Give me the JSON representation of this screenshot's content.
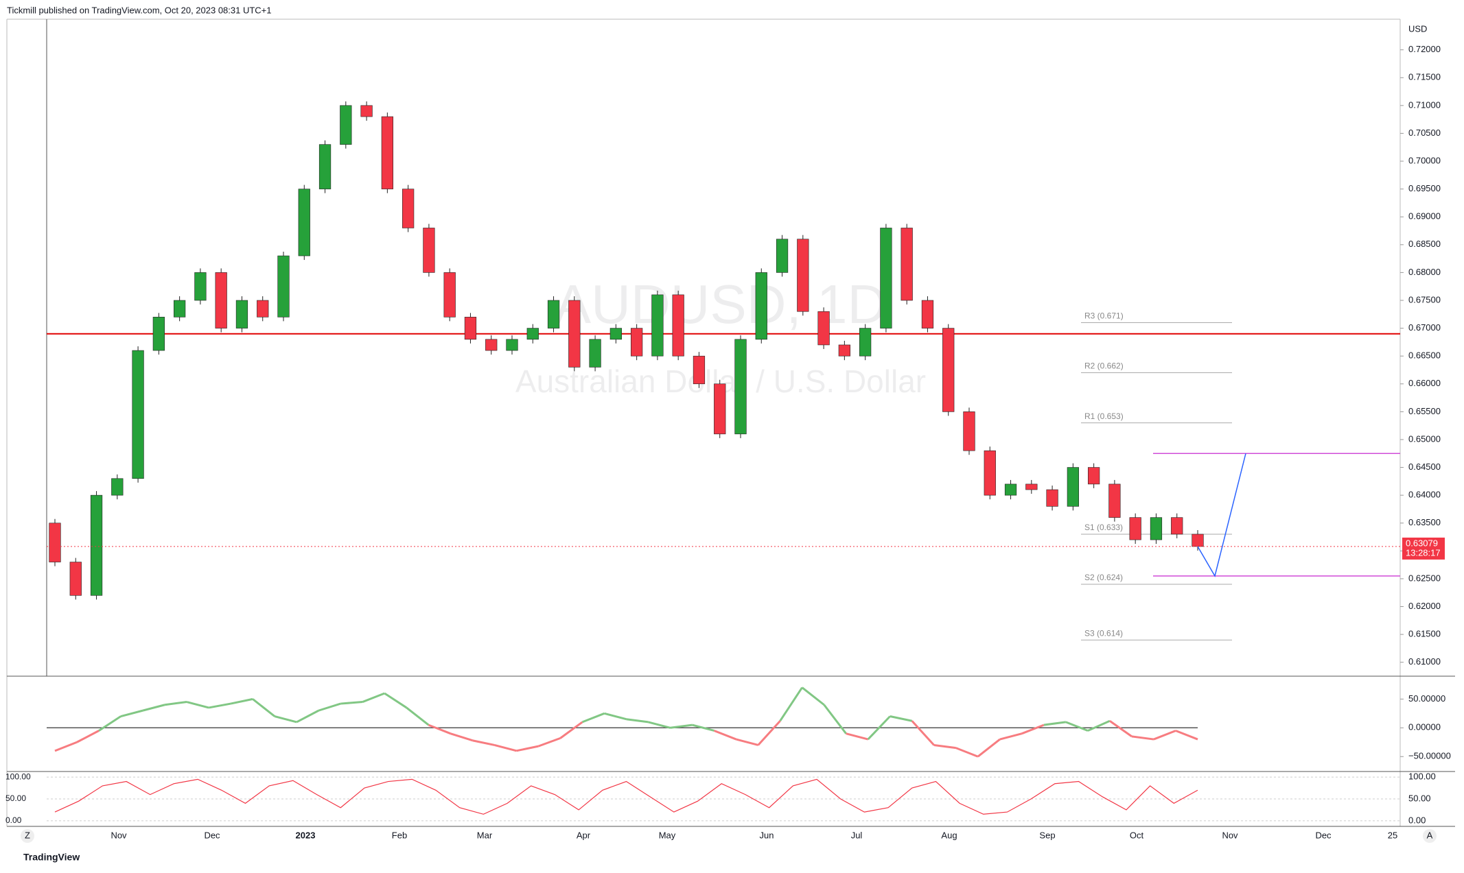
{
  "header": {
    "publisher": "Tickmill published on TradingView.com, Oct 20, 2023 08:31 UTC+1",
    "currency": "USD",
    "watermark": "AUDUSD, 1D",
    "watermark_sub": "Australian Dollar / U.S. Dollar",
    "brand": "TradingView",
    "left_button": "Z",
    "right_button": "A"
  },
  "chart_data": {
    "type": "candlestick",
    "first_open": 0.635,
    "closes": [
      0.628,
      0.622,
      0.64,
      0.643,
      0.666,
      0.672,
      0.675,
      0.68,
      0.67,
      0.675,
      0.672,
      0.683,
      0.695,
      0.703,
      0.71,
      0.708,
      0.695,
      0.688,
      0.68,
      0.672,
      0.668,
      0.666,
      0.668,
      0.67,
      0.675,
      0.663,
      0.668,
      0.67,
      0.665,
      0.676,
      0.665,
      0.66,
      0.651,
      0.668,
      0.68,
      0.686,
      0.673,
      0.667,
      0.665,
      0.67,
      0.688,
      0.675,
      0.67,
      0.655,
      0.648,
      0.64,
      0.642,
      0.641,
      0.638,
      0.645,
      0.642,
      0.636,
      0.632,
      0.636,
      0.633,
      0.63079
    ],
    "up_color": "#26a13a",
    "down_color": "#f23645",
    "ylim": [
      0.6075,
      0.7255
    ],
    "yticks": [
      {
        "value": 0.72,
        "label": "0.72000"
      },
      {
        "value": 0.715,
        "label": "0.71500"
      },
      {
        "value": 0.71,
        "label": "0.71000"
      },
      {
        "value": 0.705,
        "label": "0.70500"
      },
      {
        "value": 0.7,
        "label": "0.70000"
      },
      {
        "value": 0.695,
        "label": "0.69500"
      },
      {
        "value": 0.69,
        "label": "0.69000"
      },
      {
        "value": 0.685,
        "label": "0.68500"
      },
      {
        "value": 0.68,
        "label": "0.68000"
      },
      {
        "value": 0.675,
        "label": "0.67500"
      },
      {
        "value": 0.67,
        "label": "0.67000"
      },
      {
        "value": 0.665,
        "label": "0.66500"
      },
      {
        "value": 0.66,
        "label": "0.66000"
      },
      {
        "value": 0.655,
        "label": "0.65500"
      },
      {
        "value": 0.65,
        "label": "0.65000"
      },
      {
        "value": 0.645,
        "label": "0.64500"
      },
      {
        "value": 0.64,
        "label": "0.64000"
      },
      {
        "value": 0.635,
        "label": "0.63500"
      },
      {
        "value": 0.63,
        "label": "0.63000"
      },
      {
        "value": 0.625,
        "label": "0.62500"
      },
      {
        "value": 0.62,
        "label": "0.62000"
      },
      {
        "value": 0.615,
        "label": "0.61500"
      },
      {
        "value": 0.61,
        "label": "0.61000"
      }
    ],
    "last_price": {
      "value": 0.63079,
      "label": "0.63079",
      "countdown": "13:28:17"
    },
    "level_line": 0.669,
    "target_lines": [
      0.6475,
      0.6255
    ],
    "pivots": [
      {
        "label": "R3 (0.671)",
        "value": 0.671
      },
      {
        "label": "R2 (0.662)",
        "value": 0.662
      },
      {
        "label": "R1 (0.653)",
        "value": 0.653
      },
      {
        "label": "S1 (0.633)",
        "value": 0.633
      },
      {
        "label": "S2 (0.624)",
        "value": 0.624
      },
      {
        "label": "S3 (0.614)",
        "value": 0.614
      }
    ],
    "xlabels": [
      "Nov",
      "Dec",
      "2023",
      "Feb",
      "Mar",
      "Apr",
      "May",
      "Jun",
      "Jul",
      "Aug",
      "Sep",
      "Oct",
      "Nov",
      "Dec",
      "25"
    ],
    "momentum": {
      "values": [
        -40,
        -25,
        -5,
        20,
        30,
        40,
        45,
        35,
        42,
        50,
        20,
        10,
        30,
        42,
        45,
        60,
        35,
        5,
        -10,
        -22,
        -30,
        -40,
        -32,
        -18,
        10,
        25,
        15,
        10,
        0,
        5,
        -5,
        -20,
        -30,
        12,
        70,
        40,
        -10,
        -20,
        20,
        12,
        -30,
        -35,
        -50,
        -20,
        -10,
        5,
        10,
        -5,
        12,
        -15,
        -20,
        -5,
        -20
      ],
      "up_color": "#81c784",
      "down_color": "#f77c80",
      "ylim": [
        -70,
        85
      ],
      "yticks": [
        {
          "value": 50,
          "label": "50.00000"
        },
        {
          "value": 0,
          "label": "0.00000"
        },
        {
          "value": -50,
          "label": "−50.00000"
        }
      ]
    },
    "stochastic": {
      "values": [
        20,
        45,
        80,
        90,
        60,
        85,
        95,
        70,
        40,
        80,
        92,
        60,
        30,
        75,
        90,
        95,
        70,
        30,
        15,
        40,
        80,
        60,
        25,
        70,
        90,
        55,
        20,
        45,
        85,
        60,
        30,
        80,
        95,
        50,
        20,
        30,
        75,
        90,
        40,
        15,
        20,
        50,
        85,
        90,
        55,
        25,
        80,
        40,
        70
      ],
      "color": "#f23645",
      "ylim": [
        -5,
        105
      ],
      "yticks": [
        {
          "value": 100,
          "label": "100.00"
        },
        {
          "value": 50,
          "label": "50.00"
        },
        {
          "value": 0,
          "label": "0.00"
        }
      ]
    }
  }
}
